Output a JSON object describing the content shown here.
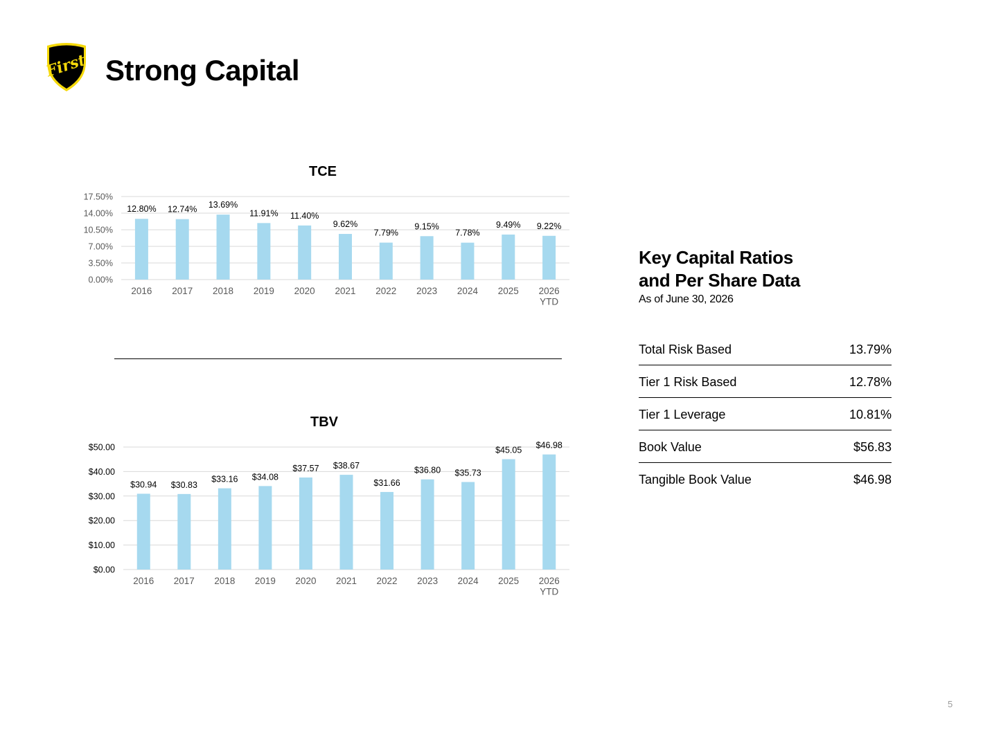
{
  "page": {
    "title": "Strong Capital",
    "logo_text": "First",
    "page_number": "5"
  },
  "colors": {
    "bar": "#a6d9ef",
    "grid": "#d9d9d9",
    "axis_text": "#595959",
    "logo_gold": "#f5d90a",
    "logo_black": "#000000"
  },
  "chart_data": [
    {
      "id": "tce",
      "type": "bar",
      "title": "TCE",
      "categories": [
        [
          "2016"
        ],
        [
          "2017"
        ],
        [
          "2018"
        ],
        [
          "2019"
        ],
        [
          "2020"
        ],
        [
          "2021"
        ],
        [
          "2022"
        ],
        [
          "2023"
        ],
        [
          "2024"
        ],
        [
          "2025"
        ],
        [
          "2026",
          "YTD"
        ]
      ],
      "values": [
        12.8,
        12.74,
        13.69,
        11.91,
        11.4,
        9.62,
        7.79,
        9.15,
        7.78,
        9.49,
        9.22
      ],
      "value_labels": [
        "12.80%",
        "12.74%",
        "13.69%",
        "11.91%",
        "11.40%",
        "9.62%",
        "7.79%",
        "9.15%",
        "7.78%",
        "9.49%",
        "9.22%"
      ],
      "y_ticks": [
        0,
        3.5,
        7,
        10.5,
        14,
        17.5
      ],
      "y_tick_labels": [
        "0.00%",
        "3.50%",
        "7.00%",
        "10.50%",
        "14.00%",
        "17.50%"
      ],
      "ylim": [
        0,
        17.5
      ],
      "grid": true
    },
    {
      "id": "tbv",
      "type": "bar",
      "title": "TBV",
      "categories": [
        [
          "2016"
        ],
        [
          "2017"
        ],
        [
          "2018"
        ],
        [
          "2019"
        ],
        [
          "2020"
        ],
        [
          "2021"
        ],
        [
          "2022"
        ],
        [
          "2023"
        ],
        [
          "2024"
        ],
        [
          "2025"
        ],
        [
          "2026",
          "YTD"
        ]
      ],
      "values": [
        30.94,
        30.83,
        33.16,
        34.08,
        37.57,
        38.67,
        31.66,
        36.8,
        35.73,
        45.05,
        46.98
      ],
      "value_labels": [
        "$30.94",
        "$30.83",
        "$33.16",
        "$34.08",
        "$37.57",
        "$38.67",
        "$31.66",
        "$36.80",
        "$35.73",
        "$45.05",
        "$46.98"
      ],
      "y_ticks": [
        0,
        10,
        20,
        30,
        40,
        50
      ],
      "y_tick_labels": [
        "$0.00",
        "$10.00",
        "$20.00",
        "$30.00",
        "$40.00",
        "$50.00"
      ],
      "ylim": [
        0,
        50
      ],
      "grid": true
    }
  ],
  "key_ratios": {
    "title_line1": "Key Capital Ratios",
    "title_line2": "and Per Share Data",
    "subtitle": "As of June 30, 2026",
    "rows": [
      {
        "label": "Total Risk Based",
        "value": "13.79%"
      },
      {
        "label": "Tier 1 Risk Based",
        "value": "12.78%"
      },
      {
        "label": "Tier 1 Leverage",
        "value": "10.81%"
      },
      {
        "label": "Book Value",
        "value": "$56.83"
      },
      {
        "label": "Tangible Book Value",
        "value": "$46.98"
      }
    ]
  }
}
